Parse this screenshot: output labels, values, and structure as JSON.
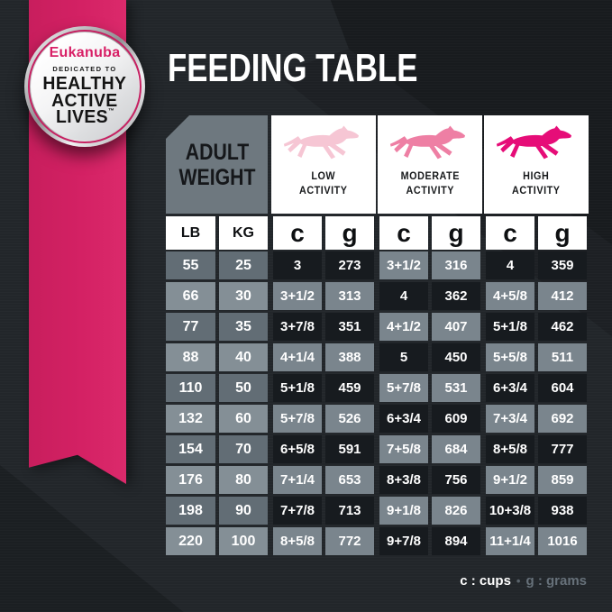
{
  "title": "FEEDING TABLE",
  "badge": {
    "brand": "Eukanuba",
    "dedication": "DEDICATED TO",
    "line1": "HEALTHY",
    "line2": "ACTIVE",
    "line3": "LIVES",
    "trademark": "™"
  },
  "header": {
    "weight_label_line1": "ADULT",
    "weight_label_line2": "WEIGHT",
    "activities": [
      {
        "id": "low",
        "line1": "LOW",
        "line2": "ACTIVITY"
      },
      {
        "id": "moderate",
        "line1": "MODERATE",
        "line2": "ACTIVITY"
      },
      {
        "id": "high",
        "line1": "HIGH",
        "line2": "ACTIVITY"
      }
    ],
    "units": [
      "LB",
      "KG",
      "c",
      "g",
      "c",
      "g",
      "c",
      "g"
    ]
  },
  "legend": {
    "cups": "c : cups",
    "separator": "•",
    "grams": "g : grams"
  },
  "colors": {
    "ribbon_pink": "#d42164",
    "brand_pink": "#d81f66",
    "dog_low": "#f6c6d4",
    "dog_moderate": "#ee7fa4",
    "dog_high": "#e60d78",
    "cell_dark": "#171b1f",
    "cell_slate": "#7a858d",
    "weight_slate_dark": "#626d75",
    "weight_slate_light": "#848f96",
    "background": "#22262a"
  },
  "chart_data": {
    "type": "table",
    "title": "FEEDING TABLE",
    "columns": [
      "Adult Weight LB",
      "Adult Weight KG",
      "Low Activity c (cups)",
      "Low Activity g (grams)",
      "Moderate Activity c (cups)",
      "Moderate Activity g (grams)",
      "High Activity c (cups)",
      "High Activity g (grams)"
    ],
    "rows": [
      [
        "55",
        "25",
        "3",
        "273",
        "3+1/2",
        "316",
        "4",
        "359"
      ],
      [
        "66",
        "30",
        "3+1/2",
        "313",
        "4",
        "362",
        "4+5/8",
        "412"
      ],
      [
        "77",
        "35",
        "3+7/8",
        "351",
        "4+1/2",
        "407",
        "5+1/8",
        "462"
      ],
      [
        "88",
        "40",
        "4+1/4",
        "388",
        "5",
        "450",
        "5+5/8",
        "511"
      ],
      [
        "110",
        "50",
        "5+1/8",
        "459",
        "5+7/8",
        "531",
        "6+3/4",
        "604"
      ],
      [
        "132",
        "60",
        "5+7/8",
        "526",
        "6+3/4",
        "609",
        "7+3/4",
        "692"
      ],
      [
        "154",
        "70",
        "6+5/8",
        "591",
        "7+5/8",
        "684",
        "8+5/8",
        "777"
      ],
      [
        "176",
        "80",
        "7+1/4",
        "653",
        "8+3/8",
        "756",
        "9+1/2",
        "859"
      ],
      [
        "198",
        "90",
        "7+7/8",
        "713",
        "9+1/8",
        "826",
        "10+3/8",
        "938"
      ],
      [
        "220",
        "100",
        "8+5/8",
        "772",
        "9+7/8",
        "894",
        "11+1/4",
        "1016"
      ]
    ],
    "legend": "c : cups • g : grams"
  }
}
